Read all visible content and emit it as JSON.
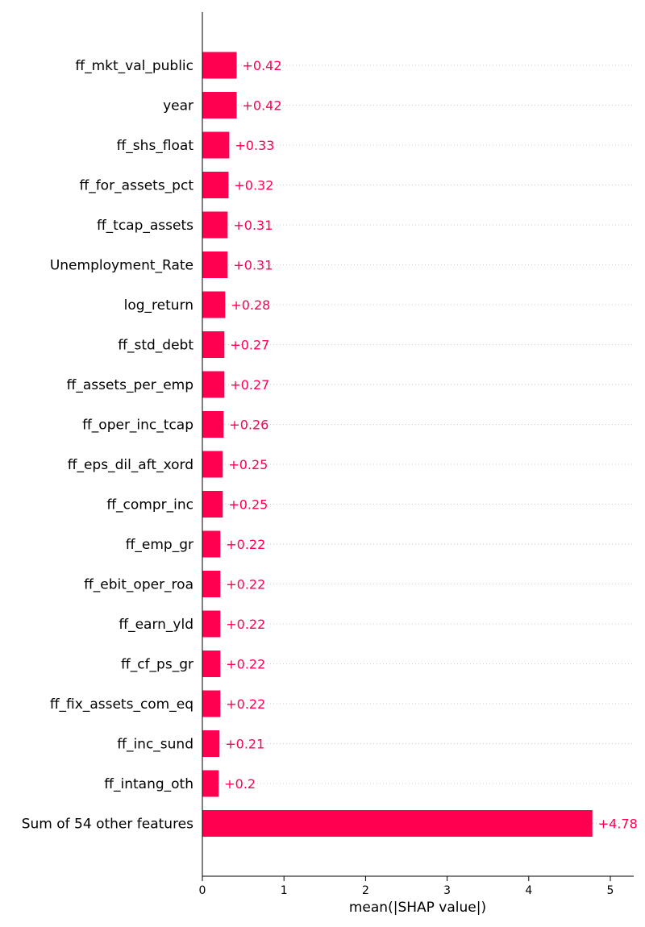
{
  "chart_data": {
    "type": "bar",
    "orientation": "horizontal",
    "categories": [
      "ff_mkt_val_public",
      "year",
      "ff_shs_float",
      "ff_for_assets_pct",
      "ff_tcap_assets",
      "Unemployment_Rate",
      "log_return",
      "ff_std_debt",
      "ff_assets_per_emp",
      "ff_oper_inc_tcap",
      "ff_eps_dil_aft_xord",
      "ff_compr_inc",
      "ff_emp_gr",
      "ff_ebit_oper_roa",
      "ff_earn_yld",
      "ff_cf_ps_gr",
      "ff_fix_assets_com_eq",
      "ff_inc_sund",
      "ff_intang_oth",
      "Sum of 54 other features"
    ],
    "values": [
      0.42,
      0.42,
      0.33,
      0.32,
      0.31,
      0.31,
      0.28,
      0.27,
      0.27,
      0.26,
      0.25,
      0.25,
      0.22,
      0.22,
      0.22,
      0.22,
      0.22,
      0.21,
      0.2,
      4.78
    ],
    "value_labels": [
      "+0.42",
      "+0.42",
      "+0.33",
      "+0.32",
      "+0.31",
      "+0.31",
      "+0.28",
      "+0.27",
      "+0.27",
      "+0.26",
      "+0.25",
      "+0.25",
      "+0.22",
      "+0.22",
      "+0.22",
      "+0.22",
      "+0.22",
      "+0.21",
      "+0.2",
      "+4.78"
    ],
    "xlabel": "mean(|SHAP value|)",
    "ylabel": "",
    "xlim": [
      0,
      5.28
    ],
    "xticks": [
      0,
      1,
      2,
      3,
      4,
      5
    ],
    "xtick_labels": [
      "0",
      "1",
      "2",
      "3",
      "4",
      "5"
    ],
    "grid": "horizontal dotted per row",
    "bar_color": "#ff0051",
    "label_color": "#ff0051",
    "grid_color": "#cccccc"
  }
}
